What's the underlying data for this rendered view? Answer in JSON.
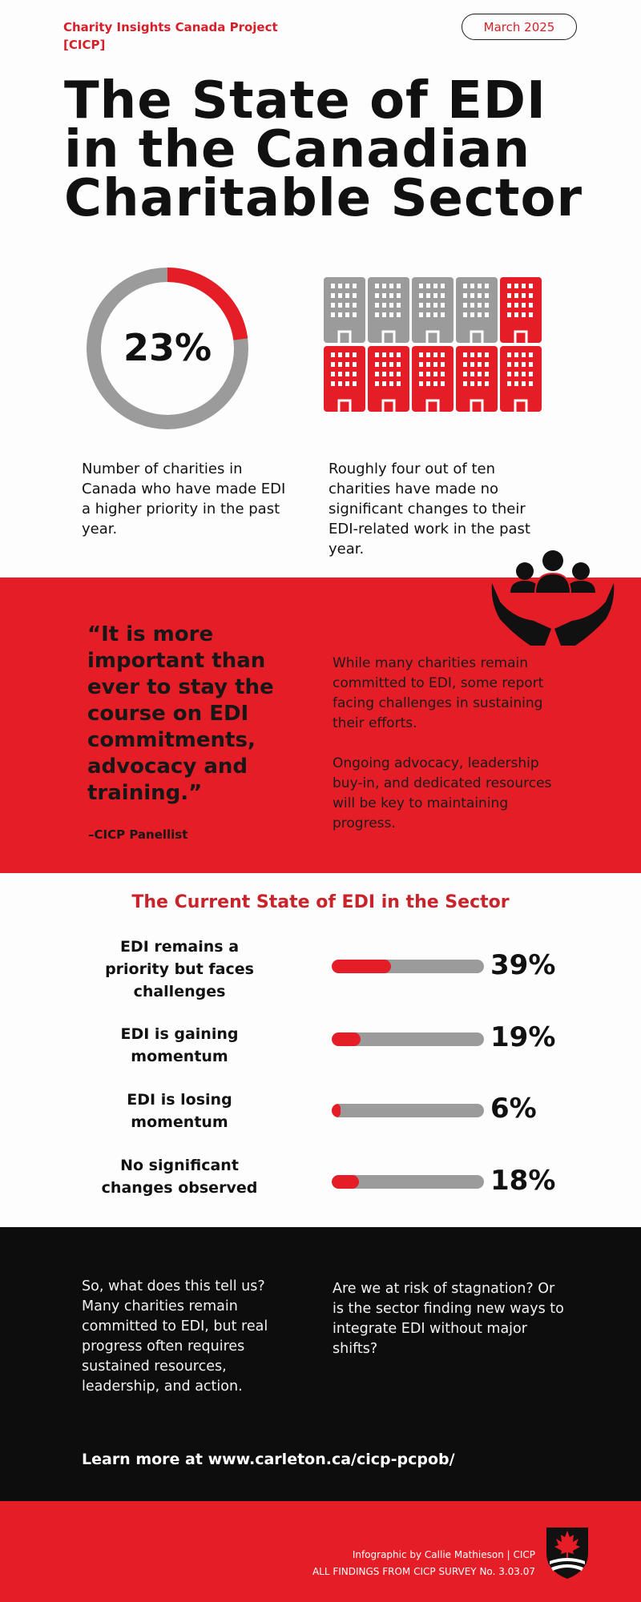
{
  "header": {
    "org_line1": "Charity Insights Canada Project",
    "org_line2": "[CICP]",
    "date": "March 2025",
    "title": "The State of EDI in the Canadian Charitable Sector"
  },
  "stats": {
    "priority": {
      "value": "23%",
      "fraction": 0.23,
      "text": "Number of charities in Canada who have made EDI a higher priority in the past year."
    },
    "no_change": {
      "highlighted": 4,
      "total": 10,
      "text": "Roughly four out of ten charities have made no significant changes to their EDI-related work in the past year."
    }
  },
  "quote_band": {
    "quote": "“It is more important than ever to stay the course on EDI commitments, advocacy and training.”",
    "attribution": "–CICP Panellist",
    "paragraph1": "While many charities remain committed to EDI, some report facing challenges in sustaining their efforts.",
    "paragraph2": "Ongoing advocacy, leadership buy-in, and dedicated resources will be key to maintaining progress."
  },
  "current_state": {
    "title": "The Current State of EDI in the Sector",
    "metrics": [
      {
        "label": "EDI remains a priority but faces challenges",
        "value": "39%",
        "percent": 39
      },
      {
        "label": "EDI is gaining momentum",
        "value": "19%",
        "percent": 19
      },
      {
        "label": "EDI is losing momentum",
        "value": "6%",
        "percent": 6
      },
      {
        "label": "No significant changes observed",
        "value": "18%",
        "percent": 18
      }
    ]
  },
  "closing": {
    "paragraph1": "So, what does this tell us? Many charities remain committed to EDI, but real progress often requires sustained resources, leadership, and action.",
    "paragraph2": "Are we at risk of stagnation? Or is the sector finding new ways to integrate EDI without major shifts?",
    "learn_more": "Learn more at www.carleton.ca/cicp-pcpob/"
  },
  "footer": {
    "credit": "Infographic by Callie Mathieson | CICP",
    "survey": "ALL FINDINGS FROM CICP SURVEY No. 3.03.07"
  },
  "colors": {
    "accent": "#e51d26",
    "dark": "#0d0d0d",
    "gray": "#9b9b9b"
  },
  "icons": [
    "donut-progress-icon",
    "building-icon",
    "people-hands-icon",
    "maple-leaf-crest-icon"
  ]
}
